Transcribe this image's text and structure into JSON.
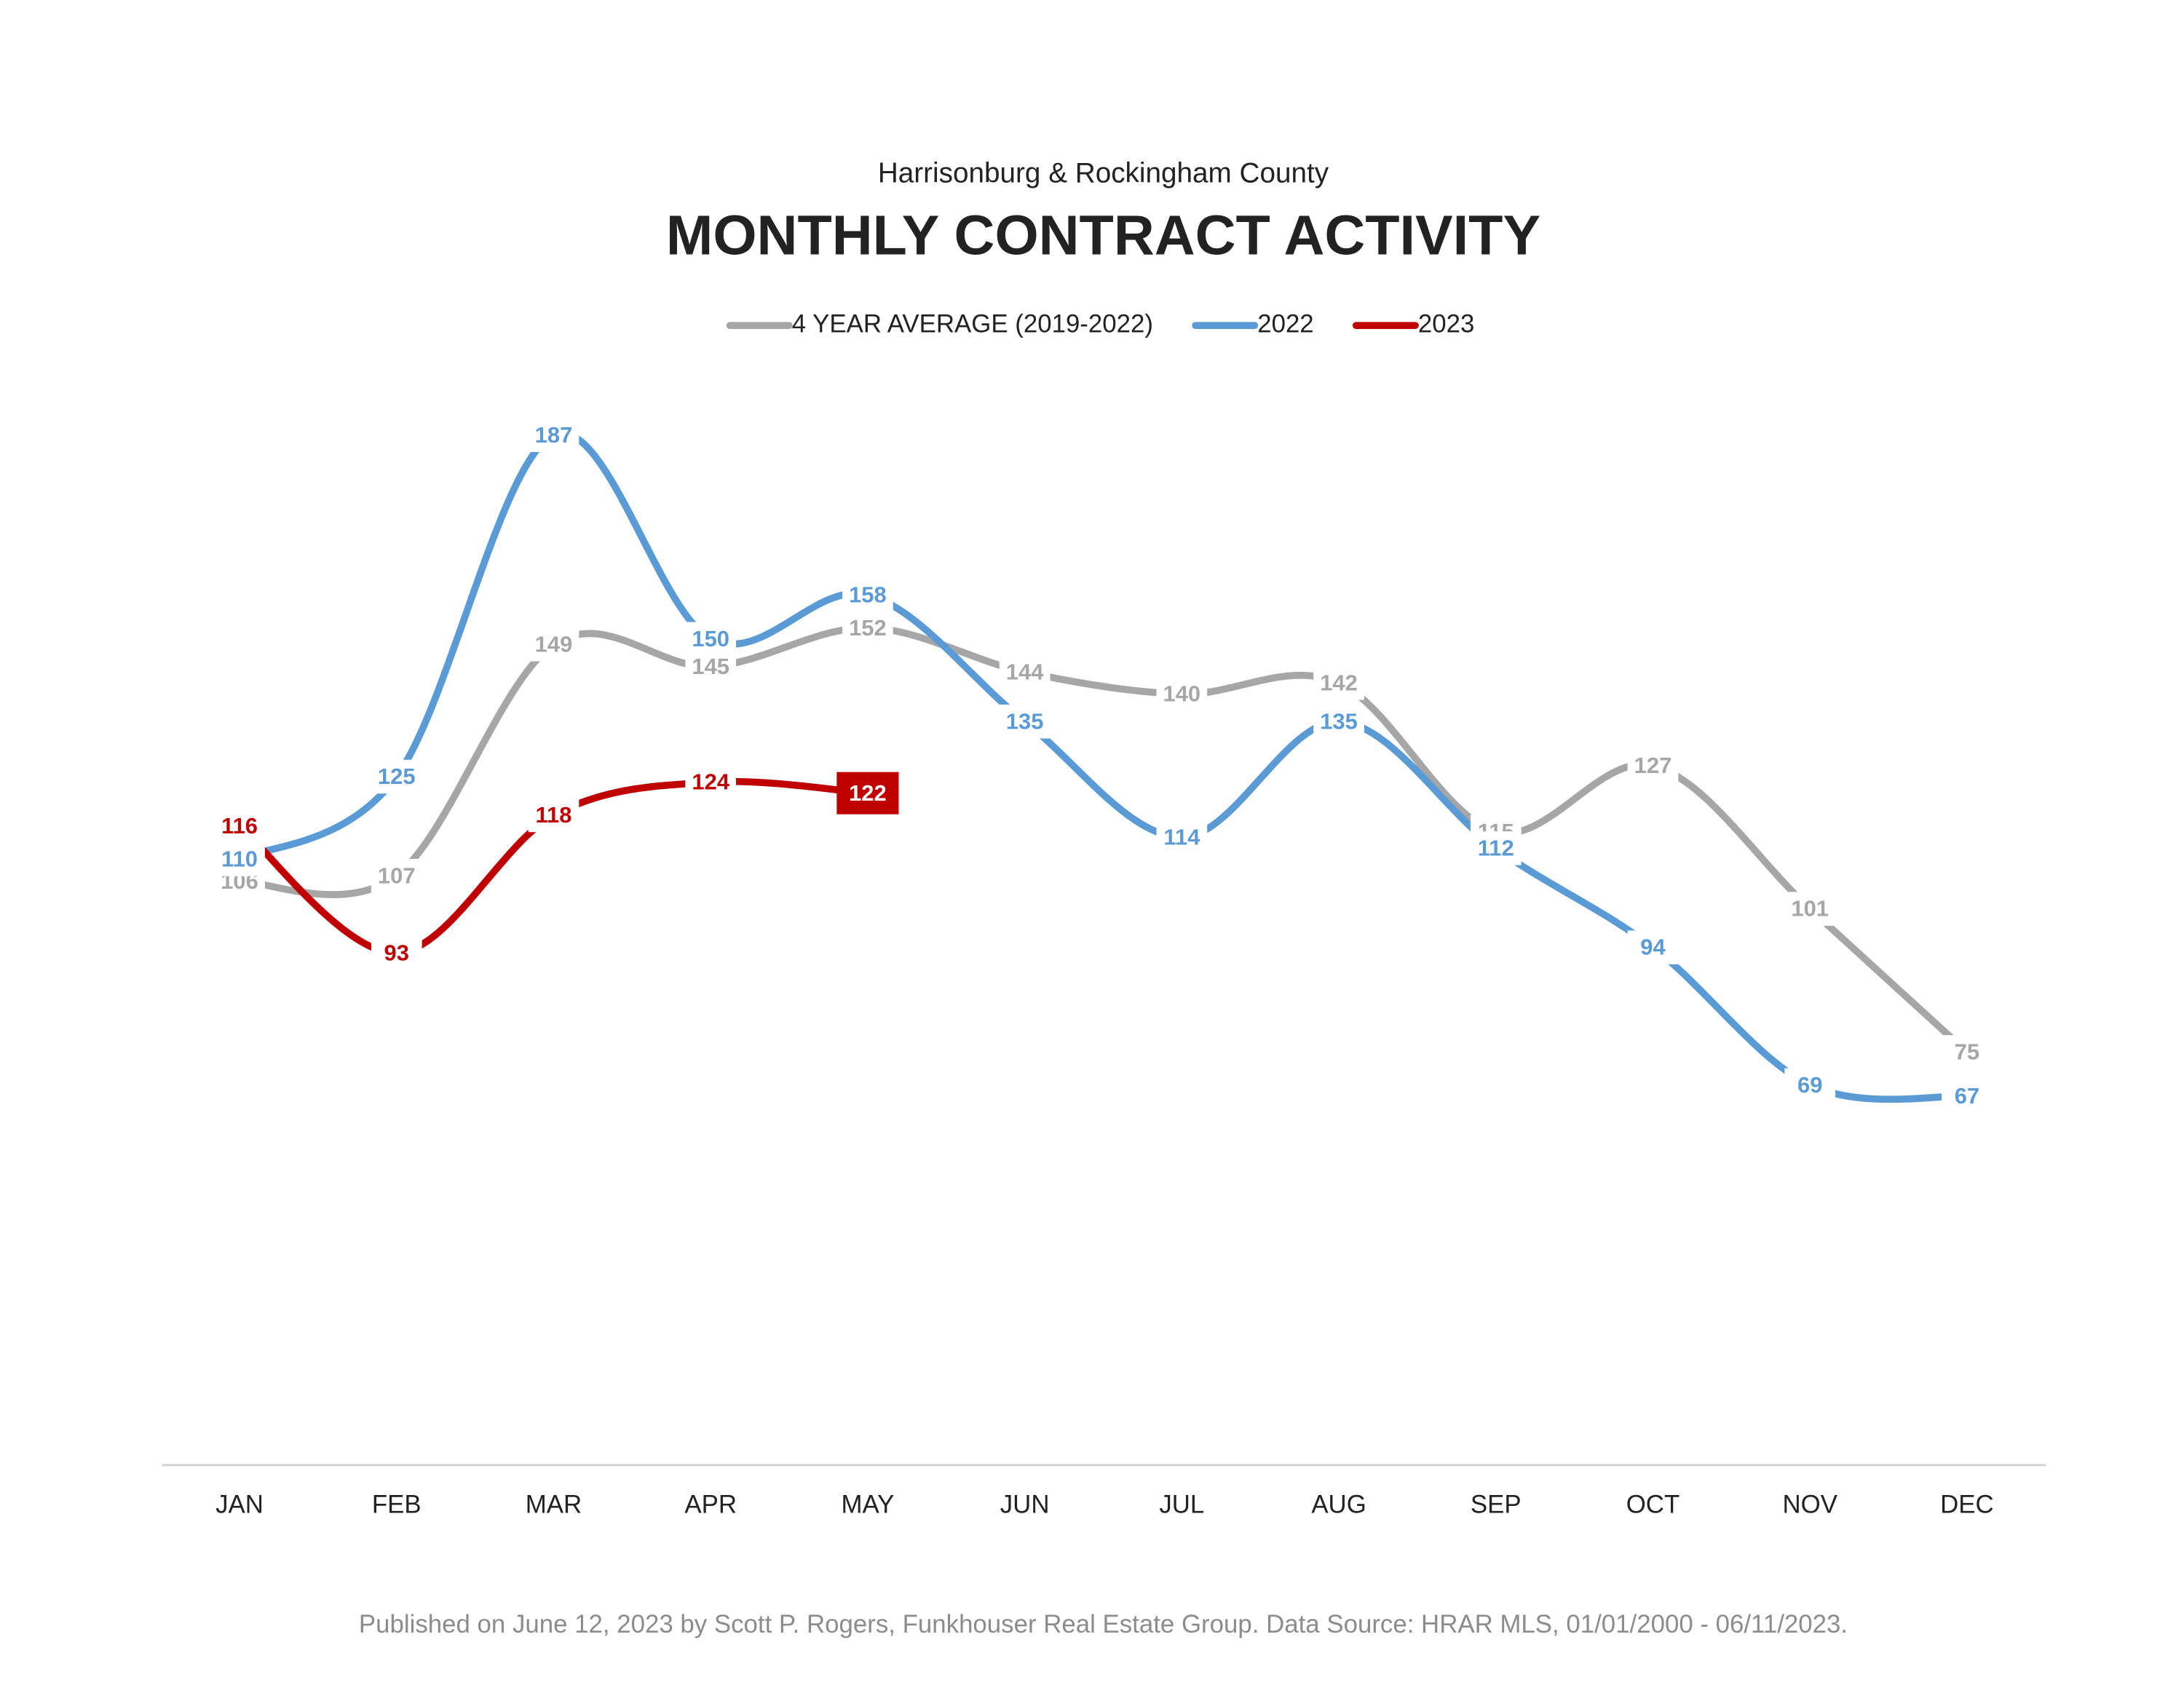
{
  "chart_data": {
    "type": "line",
    "subtitle": "Harrisonburg & Rockingham County",
    "title": "MONTHLY CONTRACT ACTIVITY",
    "footer": "Published on June 12, 2023 by Scott P. Rogers, Funkhouser Real Estate Group. Data Source: HRAR MLS, 01/01/2000 - 06/11/2023.",
    "categories": [
      "JAN",
      "FEB",
      "MAR",
      "APR",
      "MAY",
      "JUN",
      "JUL",
      "AUG",
      "SEP",
      "OCT",
      "NOV",
      "DEC"
    ],
    "ylim": [
      0,
      200
    ],
    "smooth": true,
    "legend": "top",
    "series": [
      {
        "name": "4 YEAR AVERAGE (2019-2022)",
        "color": "#a6a6a6",
        "values": [
          106,
          107,
          149,
          145,
          152,
          144,
          140,
          142,
          115,
          127,
          101,
          75
        ]
      },
      {
        "name": "2022",
        "color": "#5b9bd5",
        "values": [
          110,
          125,
          187,
          150,
          158,
          135,
          114,
          135,
          112,
          94,
          69,
          67
        ]
      },
      {
        "name": "2023",
        "color": "#c00000",
        "highlight_last": true,
        "values": [
          116,
          93,
          118,
          124,
          122,
          null,
          null,
          null,
          null,
          null,
          null,
          null
        ]
      }
    ]
  }
}
